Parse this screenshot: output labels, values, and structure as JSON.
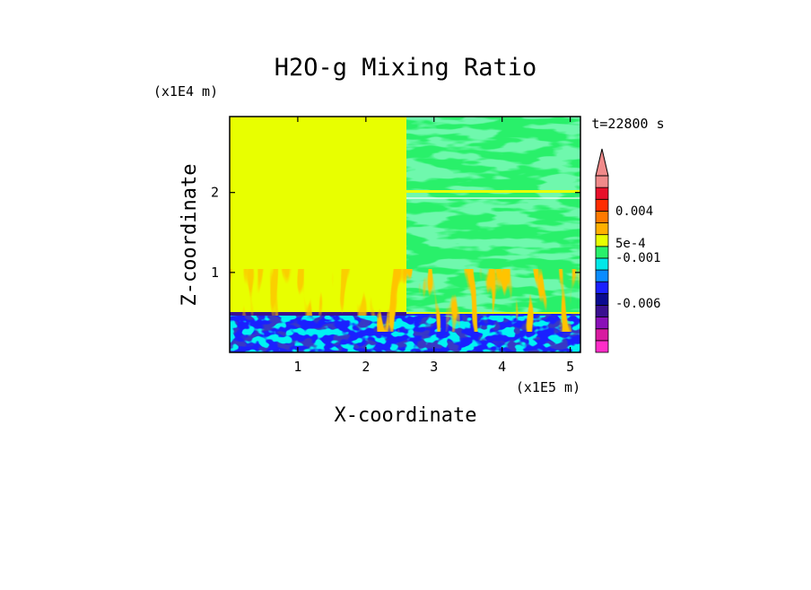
{
  "chart_data": {
    "type": "heatmap",
    "title": "H2O-g Mixing Ratio",
    "xlabel": "X-coordinate",
    "ylabel": "Z-coordinate",
    "x_unit": "(x1E5 m)",
    "y_unit": "(x1E4 m)",
    "time_label": "t=22800 s",
    "xlim": [
      0,
      5.15
    ],
    "ylim": [
      0,
      2.95
    ],
    "x_ticks": [
      "1",
      "2",
      "3",
      "4",
      "5"
    ],
    "x_tick_values": [
      1,
      2,
      3,
      4,
      5
    ],
    "y_ticks": [
      "1",
      "2"
    ],
    "y_tick_values": [
      1,
      2
    ],
    "colorbar": {
      "labels": [
        "0.004",
        "5e-4",
        "-0.001",
        "-0.006"
      ],
      "colors": [
        "#ff2dc8",
        "#d81aa0",
        "#8a10b8",
        "#3a1090",
        "#0a0a90",
        "#1a20ff",
        "#0a8cff",
        "#00e8e8",
        "#29f06a",
        "#e8ff00",
        "#ffb000",
        "#ff7a00",
        "#ff2d00",
        "#e8102a",
        "#f08a8a"
      ],
      "extend": "max"
    },
    "regions": [
      {
        "name": "dry upper-left domain",
        "x": [
          0,
          2.6
        ],
        "z": [
          0.5,
          2.95
        ],
        "color": "#e8ff00"
      },
      {
        "name": "mixed upper-right domain",
        "x": [
          2.6,
          5.15
        ],
        "z": [
          0.5,
          2.95
        ],
        "colors": [
          "#29f06a",
          "#e8ff00"
        ]
      },
      {
        "name": "surface layer",
        "x": [
          0,
          5.15
        ],
        "z": [
          0,
          0.5
        ],
        "colors": [
          "#1a20ff",
          "#0a0a90",
          "#0a8cff",
          "#00e8e8",
          "#29f06a",
          "#ffb000"
        ]
      }
    ]
  }
}
